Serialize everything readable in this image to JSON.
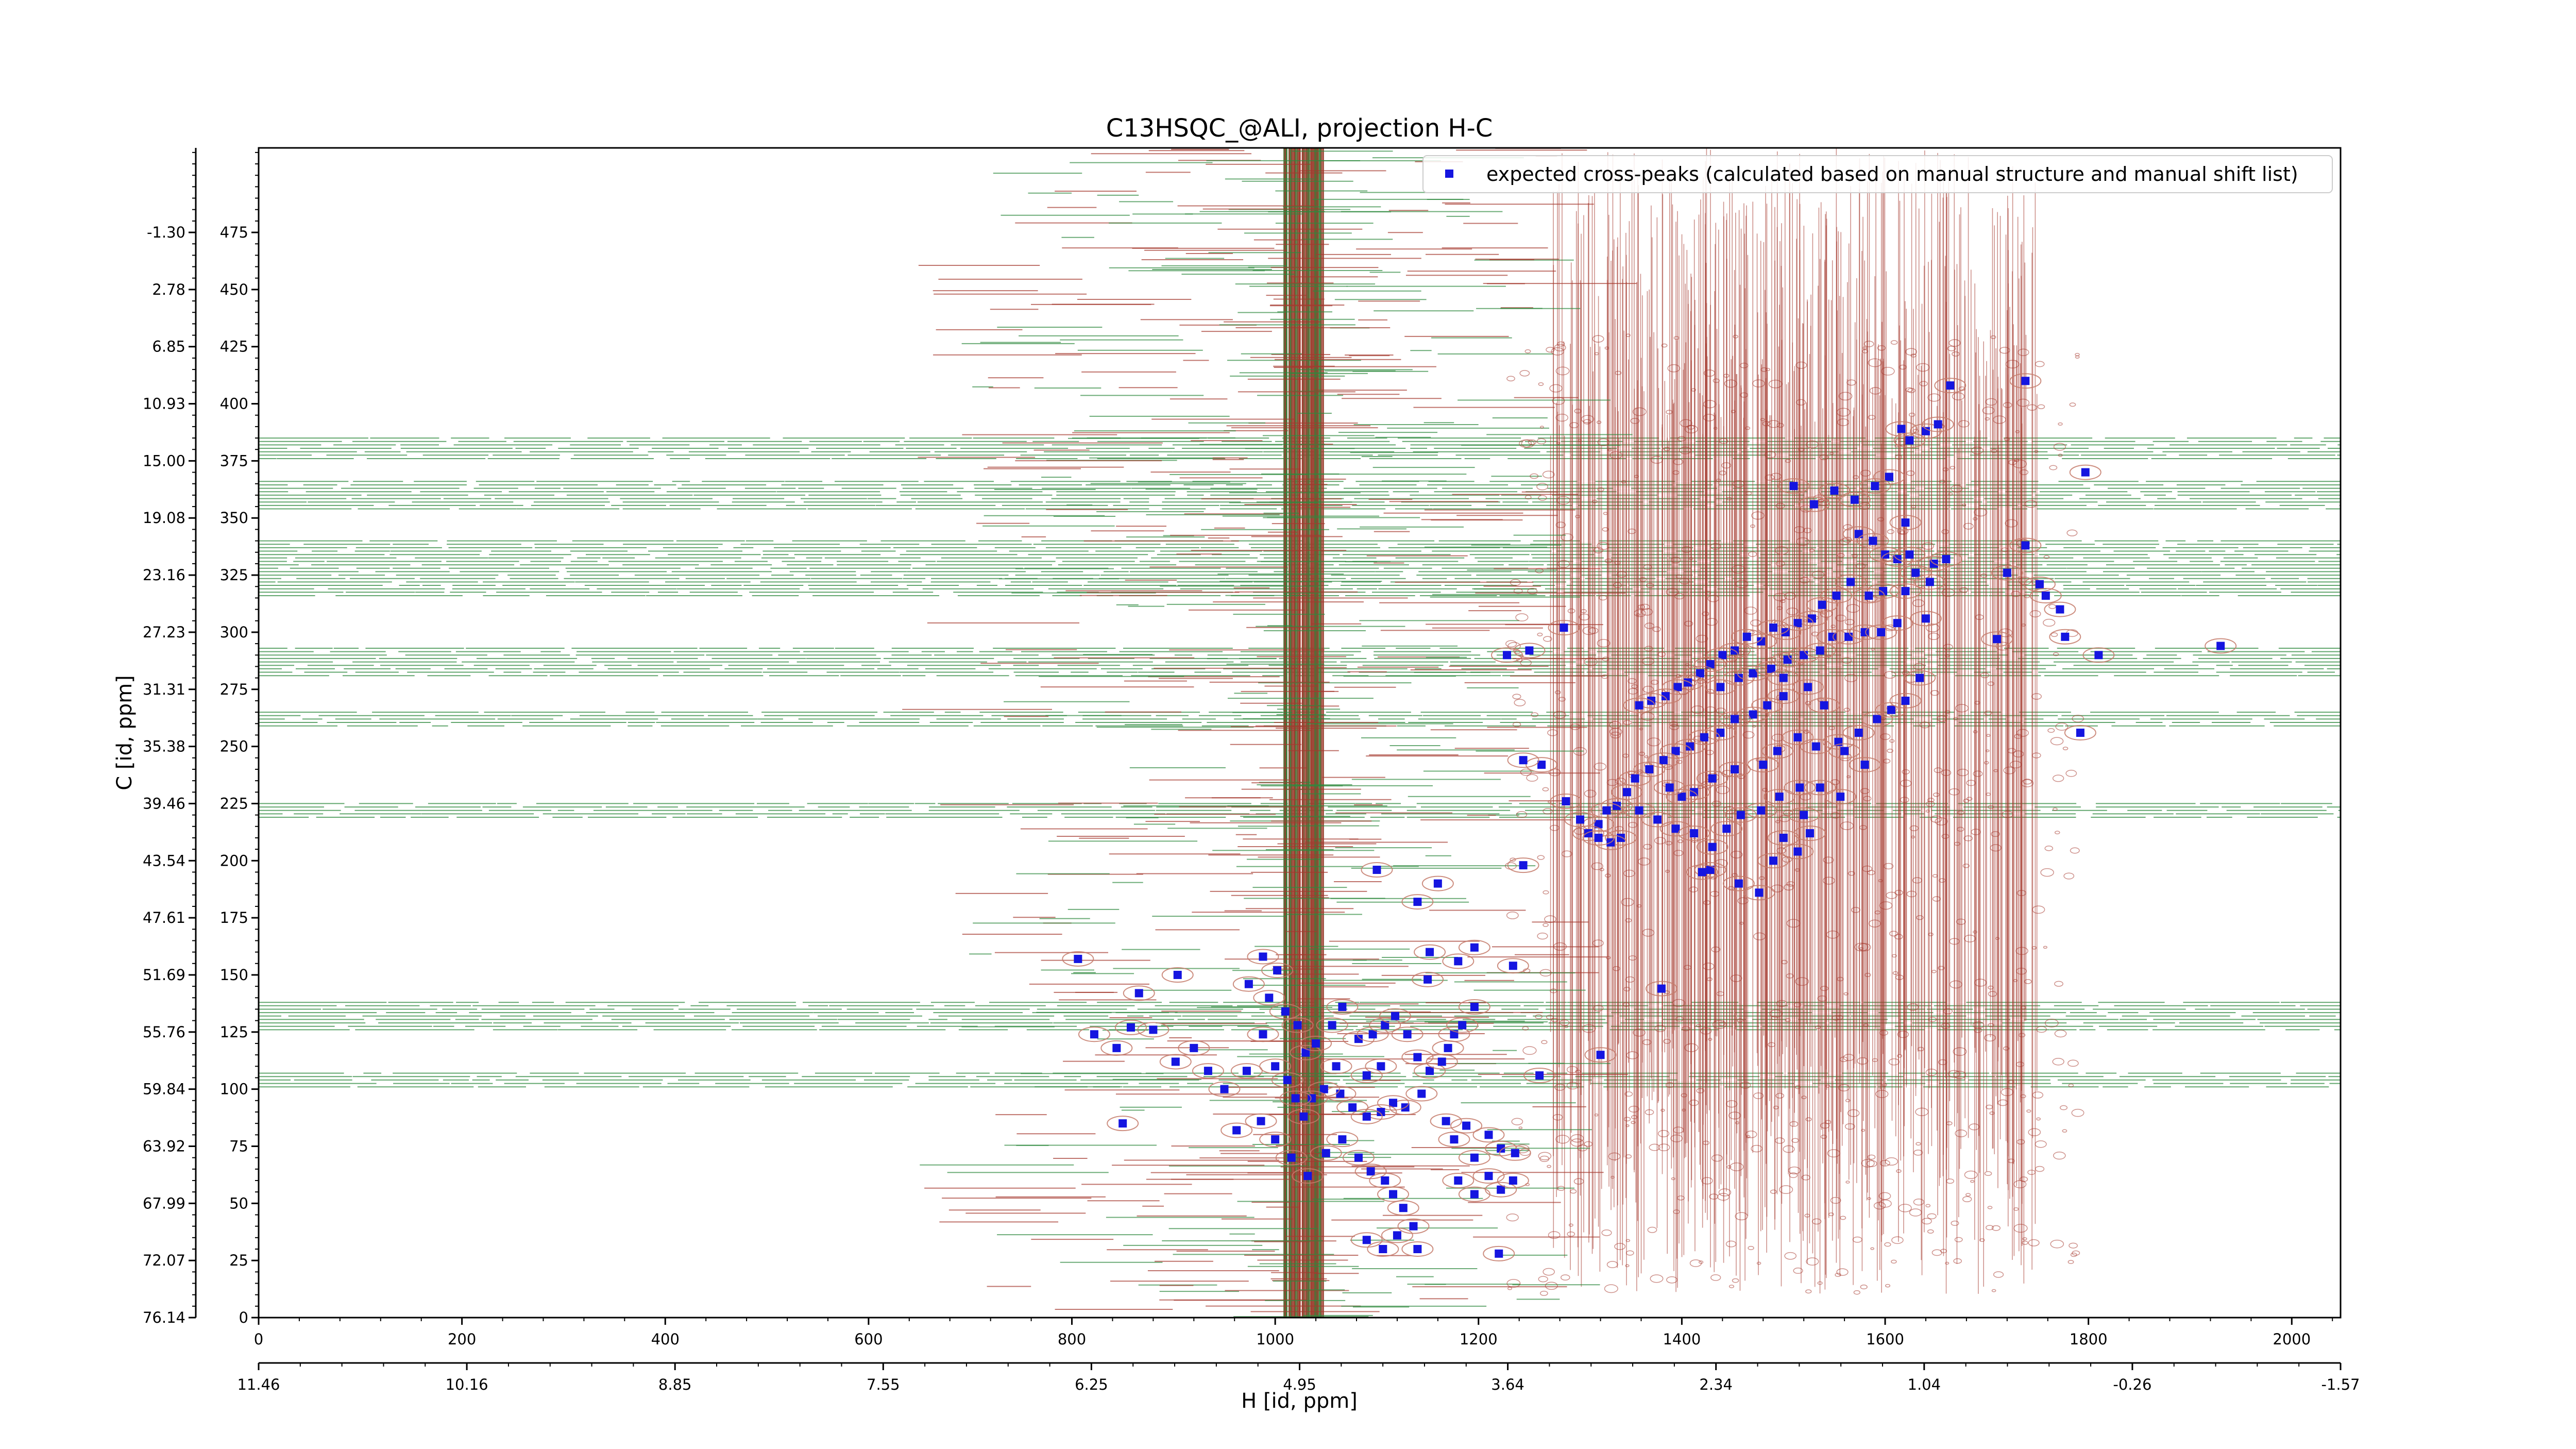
{
  "chart_data": {
    "type": "scatter",
    "title": "C13HSQC_@ALI, projection H-C",
    "xlabel": "H [id, ppm]",
    "ylabel": "C [id, ppm]",
    "xlim": [
      0,
      2048
    ],
    "ylim": [
      0,
      512
    ],
    "x_index_ticks": [
      0,
      200,
      400,
      600,
      800,
      1000,
      1200,
      1400,
      1600,
      1800,
      2000
    ],
    "y_index_ticks": [
      0,
      25,
      50,
      75,
      100,
      125,
      150,
      175,
      200,
      225,
      250,
      275,
      300,
      325,
      350,
      375,
      400,
      425,
      450,
      475
    ],
    "x_ppm_ticks": [
      "11.46",
      "10.16",
      "8.85",
      "7.55",
      "6.25",
      "4.95",
      "3.64",
      "2.34",
      "1.04",
      "-0.26",
      "-1.57"
    ],
    "y_ppm_ticks": [
      "76.14",
      "72.07",
      "67.99",
      "63.92",
      "59.84",
      "55.76",
      "51.69",
      "47.61",
      "43.54",
      "39.46",
      "35.38",
      "31.31",
      "27.23",
      "23.16",
      "19.08",
      "15.00",
      "10.93",
      "6.85",
      "2.78",
      "-1.30"
    ],
    "legend": {
      "location": "top-right",
      "label": "expected cross-peaks (calculated based on manual structure and manual shift list)"
    },
    "colors": {
      "marker": "#1515e0",
      "positive_contour": "#a5392e",
      "negative_contour": "#2e8a3e",
      "marker_halo": "#c47a6a"
    },
    "grid": false,
    "series": [
      {
        "name": "expected cross-peaks (calculated based on manual structure and manual shift list)",
        "points": [
          [
            1664,
            408
          ],
          [
            1738,
            410
          ],
          [
            1797,
            370
          ],
          [
            1930,
            294
          ],
          [
            1640,
            388
          ],
          [
            1652,
            391
          ],
          [
            1616,
            389
          ],
          [
            1624,
            384
          ],
          [
            1604,
            368
          ],
          [
            1590,
            364
          ],
          [
            1550,
            362
          ],
          [
            1570,
            358
          ],
          [
            1510,
            364
          ],
          [
            1530,
            356
          ],
          [
            1574,
            343
          ],
          [
            1588,
            340
          ],
          [
            1600,
            334
          ],
          [
            1612,
            332
          ],
          [
            1624,
            334
          ],
          [
            1630,
            326
          ],
          [
            1648,
            330
          ],
          [
            1660,
            332
          ],
          [
            1644,
            322
          ],
          [
            1620,
            318
          ],
          [
            1598,
            318
          ],
          [
            1584,
            316
          ],
          [
            1566,
            322
          ],
          [
            1552,
            316
          ],
          [
            1538,
            312
          ],
          [
            1528,
            306
          ],
          [
            1514,
            304
          ],
          [
            1502,
            300
          ],
          [
            1490,
            302
          ],
          [
            1478,
            296
          ],
          [
            1464,
            298
          ],
          [
            1452,
            292
          ],
          [
            1440,
            290
          ],
          [
            1428,
            286
          ],
          [
            1418,
            282
          ],
          [
            1406,
            278
          ],
          [
            1396,
            276
          ],
          [
            1384,
            272
          ],
          [
            1370,
            270
          ],
          [
            1358,
            268
          ],
          [
            1438,
            276
          ],
          [
            1456,
            280
          ],
          [
            1470,
            282
          ],
          [
            1488,
            284
          ],
          [
            1504,
            288
          ],
          [
            1520,
            290
          ],
          [
            1536,
            292
          ],
          [
            1548,
            298
          ],
          [
            1564,
            298
          ],
          [
            1580,
            300
          ],
          [
            1596,
            300
          ],
          [
            1612,
            304
          ],
          [
            1640,
            306
          ],
          [
            1500,
            272
          ],
          [
            1484,
            268
          ],
          [
            1470,
            264
          ],
          [
            1452,
            262
          ],
          [
            1438,
            256
          ],
          [
            1422,
            254
          ],
          [
            1408,
            250
          ],
          [
            1394,
            248
          ],
          [
            1382,
            244
          ],
          [
            1368,
            240
          ],
          [
            1354,
            236
          ],
          [
            1346,
            230
          ],
          [
            1336,
            224
          ],
          [
            1326,
            222
          ],
          [
            1318,
            216
          ],
          [
            1308,
            212
          ],
          [
            1358,
            222
          ],
          [
            1376,
            218
          ],
          [
            1394,
            214
          ],
          [
            1412,
            212
          ],
          [
            1430,
            206
          ],
          [
            1444,
            214
          ],
          [
            1458,
            220
          ],
          [
            1478,
            222
          ],
          [
            1496,
            228
          ],
          [
            1516,
            232
          ],
          [
            1536,
            232
          ],
          [
            1556,
            228
          ],
          [
            1480,
            242
          ],
          [
            1494,
            248
          ],
          [
            1514,
            254
          ],
          [
            1532,
            250
          ],
          [
            1554,
            252
          ],
          [
            1574,
            256
          ],
          [
            1592,
            262
          ],
          [
            1606,
            266
          ],
          [
            1620,
            270
          ],
          [
            1634,
            280
          ],
          [
            1580,
            242
          ],
          [
            1560,
            248
          ],
          [
            1540,
            268
          ],
          [
            1524,
            276
          ],
          [
            1500,
            280
          ],
          [
            1452,
            240
          ],
          [
            1430,
            236
          ],
          [
            1412,
            230
          ],
          [
            1400,
            228
          ],
          [
            1388,
            232
          ],
          [
            1340,
            210
          ],
          [
            1330,
            208
          ],
          [
            1318,
            210
          ],
          [
            1300,
            218
          ],
          [
            1286,
            226
          ],
          [
            1262,
            242
          ],
          [
            1244,
            244
          ],
          [
            1284,
            302
          ],
          [
            1250,
            292
          ],
          [
            1228,
            290
          ],
          [
            1244,
            198
          ],
          [
            1428,
            196
          ],
          [
            1456,
            190
          ],
          [
            1476,
            186
          ],
          [
            1490,
            200
          ],
          [
            1500,
            210
          ],
          [
            1514,
            204
          ],
          [
            1520,
            220
          ],
          [
            1526,
            212
          ],
          [
            1792,
            256
          ],
          [
            1720,
            326
          ],
          [
            1738,
            338
          ],
          [
            1752,
            321
          ],
          [
            1758,
            316
          ],
          [
            1772,
            310
          ],
          [
            1777,
            298
          ],
          [
            1810,
            290
          ],
          [
            1710,
            297
          ],
          [
            1620,
            348
          ],
          [
            1380,
            144
          ],
          [
            1320,
            115
          ],
          [
            1420,
            195
          ],
          [
            1100,
            196
          ],
          [
            1140,
            182
          ],
          [
            1150,
            148
          ],
          [
            1180,
            156
          ],
          [
            1196,
            162
          ],
          [
            1152,
            160
          ],
          [
            1160,
            190
          ],
          [
            806,
            157
          ],
          [
            904,
            150
          ],
          [
            866,
            142
          ],
          [
            858,
            127
          ],
          [
            822,
            124
          ],
          [
            844,
            118
          ],
          [
            880,
            126
          ],
          [
            902,
            112
          ],
          [
            920,
            118
          ],
          [
            934,
            108
          ],
          [
            950,
            100
          ],
          [
            972,
            108
          ],
          [
            988,
            124
          ],
          [
            994,
            140
          ],
          [
            974,
            146
          ],
          [
            988,
            158
          ],
          [
            1002,
            152
          ],
          [
            1010,
            134
          ],
          [
            1022,
            128
          ],
          [
            1030,
            116
          ],
          [
            1040,
            120
          ],
          [
            1056,
            128
          ],
          [
            1066,
            136
          ],
          [
            1082,
            122
          ],
          [
            1096,
            124
          ],
          [
            1108,
            128
          ],
          [
            1118,
            132
          ],
          [
            1130,
            124
          ],
          [
            1140,
            114
          ],
          [
            1152,
            108
          ],
          [
            1164,
            112
          ],
          [
            1176,
            124
          ],
          [
            1184,
            128
          ],
          [
            1196,
            136
          ],
          [
            1144,
            98
          ],
          [
            1128,
            92
          ],
          [
            1116,
            94
          ],
          [
            1104,
            90
          ],
          [
            1090,
            88
          ],
          [
            1076,
            92
          ],
          [
            1064,
            98
          ],
          [
            1048,
            100
          ],
          [
            1036,
            96
          ],
          [
            1028,
            88
          ],
          [
            1020,
            96
          ],
          [
            1012,
            104
          ],
          [
            1000,
            110
          ],
          [
            962,
            82
          ],
          [
            986,
            86
          ],
          [
            1000,
            78
          ],
          [
            1016,
            70
          ],
          [
            1032,
            62
          ],
          [
            1050,
            72
          ],
          [
            1066,
            78
          ],
          [
            1082,
            70
          ],
          [
            1094,
            64
          ],
          [
            1108,
            60
          ],
          [
            1116,
            54
          ],
          [
            1126,
            48
          ],
          [
            1136,
            40
          ],
          [
            1140,
            30
          ],
          [
            1120,
            36
          ],
          [
            1106,
            30
          ],
          [
            1090,
            34
          ],
          [
            1180,
            60
          ],
          [
            1196,
            54
          ],
          [
            1210,
            62
          ],
          [
            1222,
            56
          ],
          [
            1234,
            60
          ],
          [
            1196,
            70
          ],
          [
            1210,
            80
          ],
          [
            1222,
            74
          ],
          [
            1236,
            72
          ],
          [
            1168,
            86
          ],
          [
            1176,
            78
          ],
          [
            1188,
            84
          ],
          [
            1170,
            118
          ],
          [
            1104,
            110
          ],
          [
            1090,
            106
          ],
          [
            1060,
            110
          ],
          [
            850,
            85
          ],
          [
            1220,
            28
          ],
          [
            1260,
            106
          ],
          [
            1234,
            154
          ]
        ]
      }
    ]
  }
}
